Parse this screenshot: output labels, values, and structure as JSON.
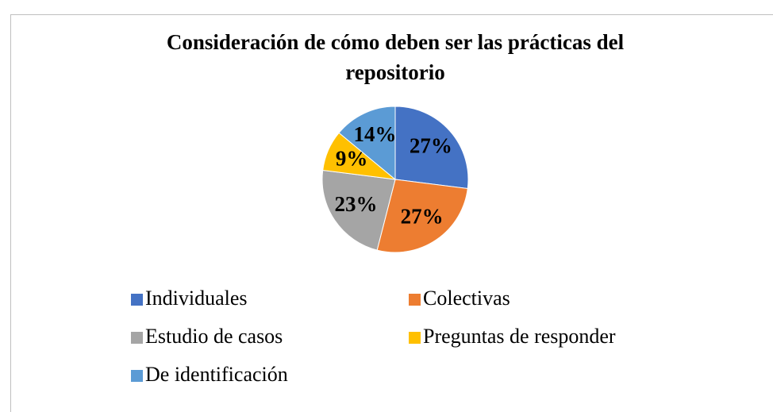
{
  "chart_data": {
    "type": "pie",
    "title": "Consideración de cómo deben ser las prácticas del repositorio",
    "categories": [
      "Individuales",
      "Colectivas",
      "Estudio de casos",
      "Preguntas de responder",
      "De identificación"
    ],
    "values": [
      27,
      27,
      23,
      9,
      14
    ],
    "value_labels": [
      "27%",
      "27%",
      "23%",
      "9%",
      "14%"
    ],
    "colors": [
      "#4472c4",
      "#ed7d31",
      "#a5a5a5",
      "#ffc000",
      "#5b9bd5"
    ],
    "legend": "bottom"
  }
}
